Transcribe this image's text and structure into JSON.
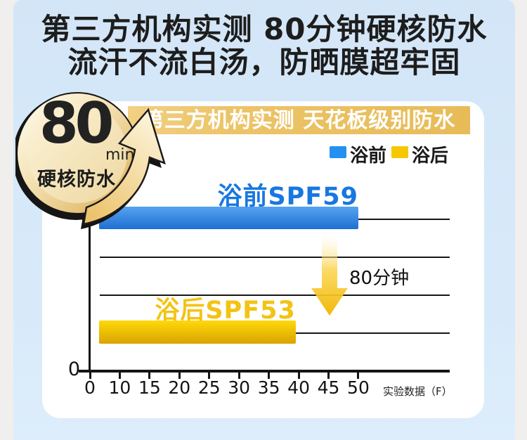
{
  "page": {
    "title_line1": "第三方机构实测 80分钟硬核防水",
    "title_line2": "流汗不流白汤，防晒膜超牢固"
  },
  "badge": {
    "number": "80",
    "unit": "min",
    "caption": "硬核防水"
  },
  "banner": {
    "text": "第三方机构实测 天花板级别防水"
  },
  "chart_data": {
    "type": "bar",
    "orientation": "horizontal",
    "title": "第三方机构实测 天花板级别防水",
    "legend": [
      {
        "label": "浴前",
        "color": "#2490f0"
      },
      {
        "label": "浴后",
        "color": "#f6c804"
      }
    ],
    "series": [
      {
        "name": "浴前",
        "data_label": "浴前SPF59",
        "spf": 59,
        "bar_end_on_axis": 50,
        "color_top": "#56a3f0",
        "color_bottom": "#1e6fd2",
        "label_color": "#1877e0"
      },
      {
        "name": "浴后",
        "data_label": "浴后SPF53",
        "spf": 53,
        "bar_end_on_axis": 39.5,
        "color_top": "#ffd908",
        "color_bottom": "#d9a302",
        "label_color": "#f3c313"
      }
    ],
    "x_ticks": [
      0,
      10,
      15,
      20,
      25,
      30,
      35,
      40,
      45,
      50
    ],
    "y_origin_label": "0",
    "xlabel": "实验数据（F）",
    "annotation": "80分钟",
    "grid": true,
    "legend_position": "top-right",
    "background": "#ffffff"
  },
  "colors": {
    "page_margin": "#f0efed",
    "panel_blue": "#d5e8f8",
    "banner_gold": "#eac264",
    "axis": "#141414",
    "headline_text": "#1d1d1d",
    "banner_text": "#ffffff"
  }
}
